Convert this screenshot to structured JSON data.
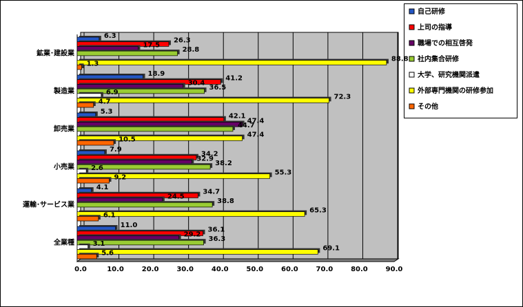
{
  "chart_data": {
    "type": "bar",
    "orientation": "horizontal",
    "categories": [
      "鉱業･建設業",
      "製造業",
      "卸売業",
      "小売業",
      "運輸･サービス業",
      "全業種"
    ],
    "series": [
      {
        "name": "自己研修",
        "color": "#2457c5",
        "values": [
          6.3,
          18.9,
          5.3,
          7.9,
          4.1,
          11.0
        ],
        "value_labels": [
          "6.3",
          "18.9",
          "5.3",
          "7.9",
          "4.1",
          "11.0"
        ]
      },
      {
        "name": "上司の指導",
        "color": "#ff0000",
        "values": [
          26.3,
          41.2,
          42.1,
          34.2,
          34.7,
          36.1
        ],
        "value_labels": [
          "26.3",
          "41.2",
          "42.1",
          "34.2",
          "34.7",
          "36.1"
        ]
      },
      {
        "name": "職場での相互啓発",
        "color": "#660066",
        "values": [
          17.5,
          30.4,
          47.4,
          32.9,
          24.5,
          29.2
        ],
        "value_labels": [
          "17.5",
          "30.4",
          "47.4",
          "32.9",
          "24.5",
          "29.2"
        ]
      },
      {
        "name": "社内集合研修",
        "color": "#99cc33",
        "values": [
          28.8,
          36.5,
          44.7,
          38.2,
          38.8,
          36.3
        ],
        "value_labels": [
          "28.8",
          "36.5",
          "44.7",
          "38.2",
          "38.8",
          "36.3"
        ]
      },
      {
        "name": "大学、研究機関派遣",
        "color": "#ffffff",
        "values": [
          0,
          6.9,
          0,
          2.6,
          0,
          3.1
        ],
        "value_labels": [
          null,
          "6.9",
          null,
          "2.6",
          null,
          "3.1"
        ]
      },
      {
        "name": "外部専門機関の研修参加",
        "color": "#ffff00",
        "values": [
          88.8,
          72.3,
          47.4,
          55.3,
          65.3,
          69.1
        ],
        "value_labels": [
          "88.8",
          "72.3",
          "47.4",
          "55.3",
          "65.3",
          "69.1"
        ]
      },
      {
        "name": "その他",
        "color": "#ff6600",
        "values": [
          1.3,
          4.7,
          10.5,
          9.2,
          6.1,
          5.6
        ],
        "value_labels": [
          "1.3",
          "4.7",
          "10.5",
          "9.2",
          "6.1",
          "5.6"
        ]
      }
    ],
    "xlim": [
      0,
      90
    ],
    "xticks": [
      {
        "value": 0,
        "label": "0.0"
      },
      {
        "value": 10,
        "label": "10.0"
      },
      {
        "value": 20,
        "label": "20.0"
      },
      {
        "value": 30,
        "label": "30.0"
      },
      {
        "value": 40,
        "label": "40.0"
      },
      {
        "value": 50,
        "label": "50.0"
      },
      {
        "value": 60,
        "label": "60.0"
      },
      {
        "value": 70,
        "label": "70.0"
      },
      {
        "value": 80,
        "label": "80.0"
      },
      {
        "value": 90,
        "label": "90.0"
      }
    ],
    "grid": true,
    "legend": "top-right"
  }
}
